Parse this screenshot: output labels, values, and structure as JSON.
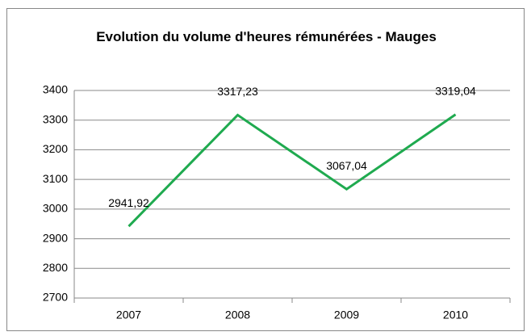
{
  "chart_data": {
    "type": "line",
    "title": "Evolution du volume d'heures rémunérées - Mauges",
    "categories": [
      "2007",
      "2008",
      "2009",
      "2010"
    ],
    "values": [
      2941.92,
      3317.23,
      3067.04,
      3319.04
    ],
    "value_labels": [
      "2941,92",
      "3317,23",
      "3067,04",
      "3319,04"
    ],
    "color": "#1faa4f",
    "ylim": [
      2700,
      3400
    ],
    "yticks": [
      2700,
      2800,
      2900,
      3000,
      3100,
      3200,
      3300,
      3400
    ],
    "grid": true
  }
}
